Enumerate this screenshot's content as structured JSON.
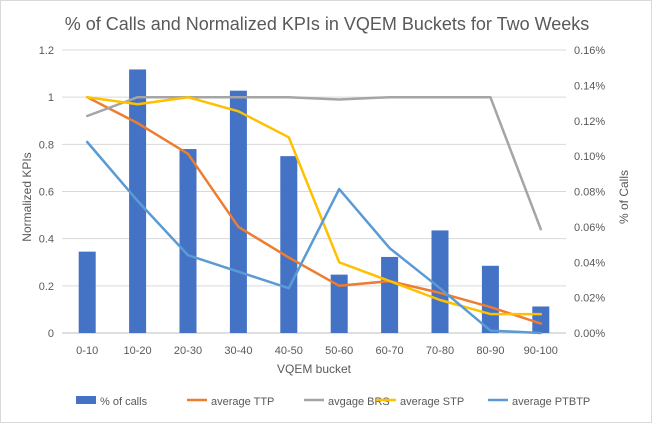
{
  "chart_data": {
    "type": "bar",
    "title": "% of Calls and Normalized KPIs in VQEM Buckets for Two Weeks",
    "xlabel": "VQEM bucket",
    "ylabel": "Normalized KPIs",
    "y2label": "% of Calls",
    "categories": [
      "0-10",
      "10-20",
      "20-30",
      "30-40",
      "40-50",
      "50-60",
      "60-70",
      "70-80",
      "80-90",
      "90-100"
    ],
    "ylim": [
      0,
      1.2
    ],
    "yticks": [
      "0",
      "0.2",
      "0.4",
      "0.6",
      "0.8",
      "1",
      "1.2"
    ],
    "y2lim": [
      0,
      0.0016
    ],
    "y2ticks": [
      "0.00%",
      "0.02%",
      "0.04%",
      "0.06%",
      "0.08%",
      "0.10%",
      "0.12%",
      "0.14%",
      "0.16%"
    ],
    "grid": true,
    "legend_position": "bottom",
    "bar_series": {
      "name": "% of calls",
      "axis": "secondary",
      "color": "#4472C4",
      "values": [
        0.00046,
        0.00149,
        0.00104,
        0.00137,
        0.001,
        0.00033,
        0.00043,
        0.00058,
        0.00038,
        0.00015
      ]
    },
    "line_series": [
      {
        "name": "average TTP",
        "color": "#ED7D31",
        "values": [
          1.0,
          0.89,
          0.76,
          0.45,
          0.32,
          0.2,
          0.22,
          0.17,
          0.11,
          0.04
        ]
      },
      {
        "name": "avgage BRS",
        "color": "#A5A5A5",
        "values": [
          0.92,
          1.0,
          1.0,
          1.0,
          1.0,
          0.99,
          1.0,
          1.0,
          1.0,
          0.44
        ]
      },
      {
        "name": "average STP",
        "color": "#FFC000",
        "values": [
          1.0,
          0.97,
          1.0,
          0.94,
          0.83,
          0.3,
          0.22,
          0.14,
          0.08,
          0.08
        ]
      },
      {
        "name": "average PTBTP",
        "color": "#5B9BD5",
        "values": [
          0.81,
          0.56,
          0.33,
          0.26,
          0.19,
          0.61,
          0.36,
          0.19,
          0.01,
          0.0
        ]
      }
    ]
  }
}
